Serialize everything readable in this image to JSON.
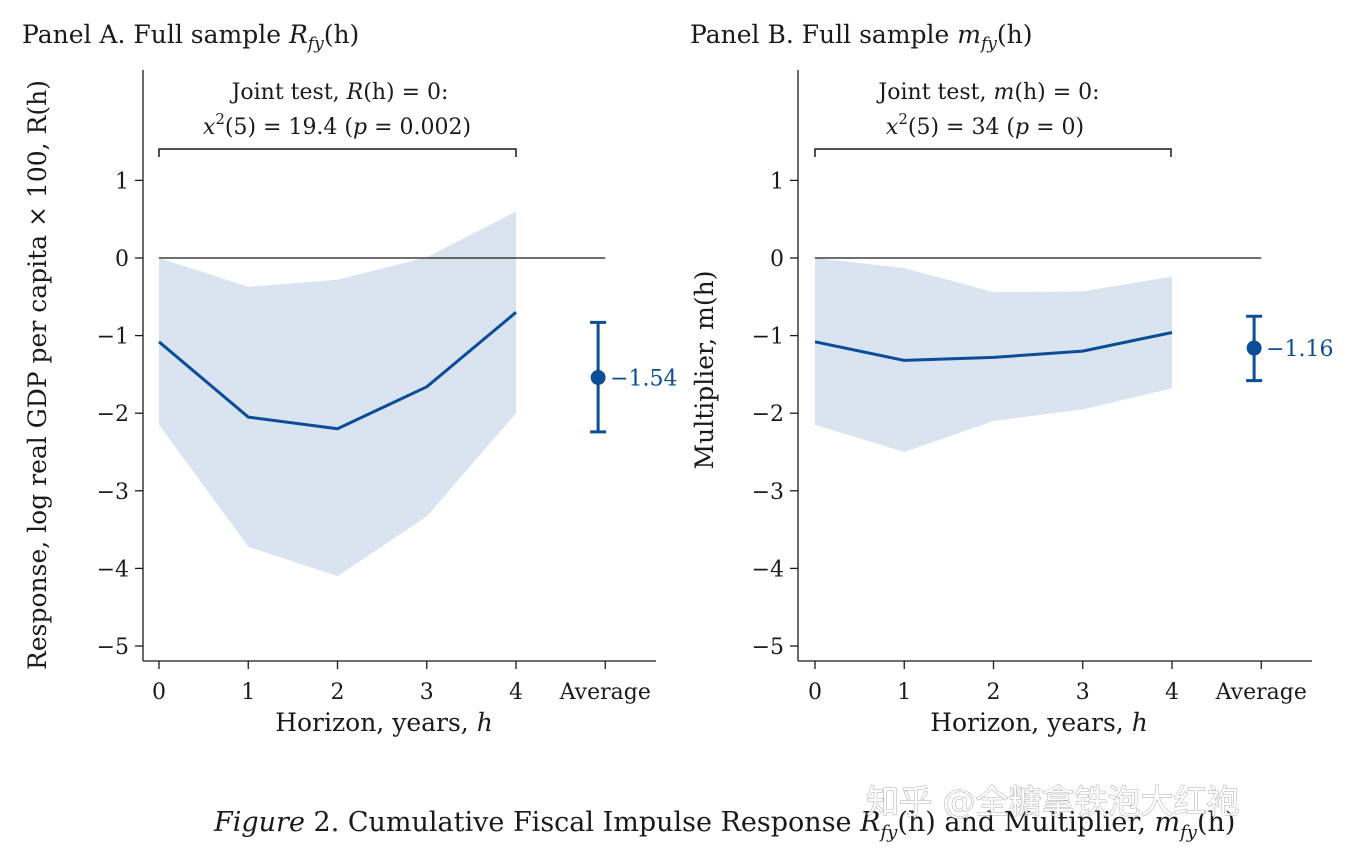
{
  "chart_data": [
    {
      "type": "line",
      "panel": "A",
      "title": {
        "prefix": "Panel A. Full sample ",
        "symbol": "R",
        "sub": "fy",
        "suffix": "(h)"
      },
      "xlabel": {
        "text": "Horizon, years, ",
        "var": "h"
      },
      "ylabel": "Response, log real GDP per capita × 100, R(h)",
      "x": [
        0,
        1,
        2,
        3,
        4
      ],
      "x_ticks": [
        "0",
        "1",
        "2",
        "3",
        "4",
        "Average"
      ],
      "y_ticks": [
        "1",
        "0",
        "−1",
        "−2",
        "−3",
        "−4",
        "−5"
      ],
      "ylim": [
        -5.2,
        2.4
      ],
      "series": [
        {
          "name": "estimate",
          "values": [
            -1.08,
            -2.05,
            -2.2,
            -1.66,
            -0.7
          ]
        },
        {
          "name": "ci_upper",
          "values": [
            0.0,
            -0.37,
            -0.28,
            0.01,
            0.6
          ]
        },
        {
          "name": "ci_lower",
          "values": [
            -2.15,
            -3.72,
            -4.1,
            -3.33,
            -2.0
          ]
        }
      ],
      "average": {
        "value": -1.54,
        "label": "−1.54",
        "ci": [
          -2.24,
          -0.83
        ]
      },
      "joint_test": {
        "line1_prefix": "Joint test, ",
        "line1_var": "R",
        "line1_suffix": "(h) = 0:",
        "line2_prefix": "x",
        "line2_sup": "2",
        "line2_mid": "(5) = 19.4 (",
        "line2_p": "p",
        "line2_suffix": " = 0.002)"
      }
    },
    {
      "type": "line",
      "panel": "B",
      "title": {
        "prefix": "Panel B. Full sample ",
        "symbol": "m",
        "sub": "fy",
        "suffix": "(h)"
      },
      "xlabel": {
        "text": "Horizon, years, ",
        "var": "h"
      },
      "ylabel": "Multiplier,  m(h)",
      "x": [
        0,
        1,
        2,
        3,
        4
      ],
      "x_ticks": [
        "0",
        "1",
        "2",
        "3",
        "4",
        "Average"
      ],
      "y_ticks": [
        "1",
        "0",
        "−1",
        "−2",
        "−3",
        "−4",
        "−5"
      ],
      "ylim": [
        -5.2,
        2.4
      ],
      "series": [
        {
          "name": "estimate",
          "values": [
            -1.08,
            -1.32,
            -1.28,
            -1.2,
            -0.96
          ]
        },
        {
          "name": "ci_upper",
          "values": [
            0.0,
            -0.13,
            -0.44,
            -0.43,
            -0.24
          ]
        },
        {
          "name": "ci_lower",
          "values": [
            -2.15,
            -2.5,
            -2.1,
            -1.95,
            -1.68
          ]
        }
      ],
      "average": {
        "value": -1.16,
        "label": "−1.16",
        "ci": [
          -1.58,
          -0.75
        ]
      },
      "joint_test": {
        "line1_prefix": "Joint test, ",
        "line1_var": "m",
        "line1_suffix": "(h) = 0:",
        "line2_prefix": "x",
        "line2_sup": "2",
        "line2_mid": "(5) = 34 (",
        "line2_p": "p",
        "line2_suffix": " = 0)"
      }
    }
  ],
  "caption": {
    "fig": "Figure",
    "num": " 2. ",
    "text": "Cumulative Fiscal Impulse Response ",
    "sym1": "R",
    "sub1": "fy",
    "mid": "(h) and Multiplier, ",
    "sym2": "m",
    "sub2": "fy",
    "end": "(h)"
  },
  "watermark": "知乎 @全糖拿铁泡大红袍",
  "colors": {
    "line": "#0b4d96",
    "band": "#dae4f1",
    "axis": "#1a1a1a"
  }
}
